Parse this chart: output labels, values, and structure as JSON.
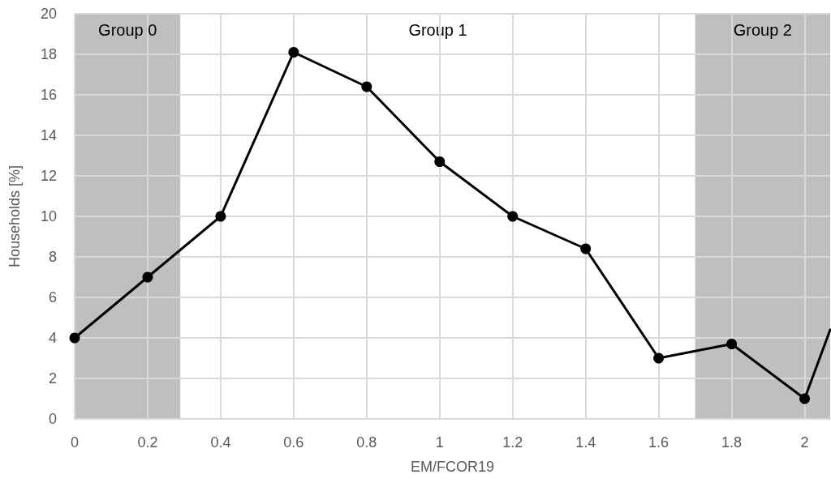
{
  "chart_data": {
    "type": "line",
    "xlabel": "EM/FCOR19",
    "ylabel": "Households [%]",
    "x": [
      0,
      0.2,
      0.4,
      0.6,
      0.8,
      1,
      1.2,
      1.4,
      1.6,
      1.8,
      2,
      2.07
    ],
    "series": [
      {
        "color": "#000000",
        "values": [
          4.0,
          7.0,
          10.0,
          18.1,
          16.4,
          12.7,
          10.0,
          8.4,
          3.0,
          3.7,
          1.0,
          4.4
        ]
      }
    ],
    "xlim": [
      0,
      2.07
    ],
    "xticks": [
      0,
      0.2,
      0.4,
      0.6,
      0.8,
      1,
      1.2,
      1.4,
      1.6,
      1.8,
      2
    ],
    "ylim": [
      0,
      20
    ],
    "yticks": [
      0,
      2,
      4,
      6,
      8,
      10,
      12,
      14,
      16,
      18,
      20
    ],
    "bands": [
      {
        "axis": "x",
        "from": 0,
        "to": 0.29,
        "label": "Group 0",
        "color": "#bfbfbf"
      },
      {
        "axis": "x",
        "from": 0.29,
        "to": 1.7,
        "label": "Group 1",
        "color": "#ffffff"
      },
      {
        "axis": "x",
        "from": 1.7,
        "to": 2.07,
        "label": "Group 2",
        "color": "#bfbfbf"
      }
    ],
    "grid": true,
    "marker": "circle",
    "line_style": "solid"
  }
}
